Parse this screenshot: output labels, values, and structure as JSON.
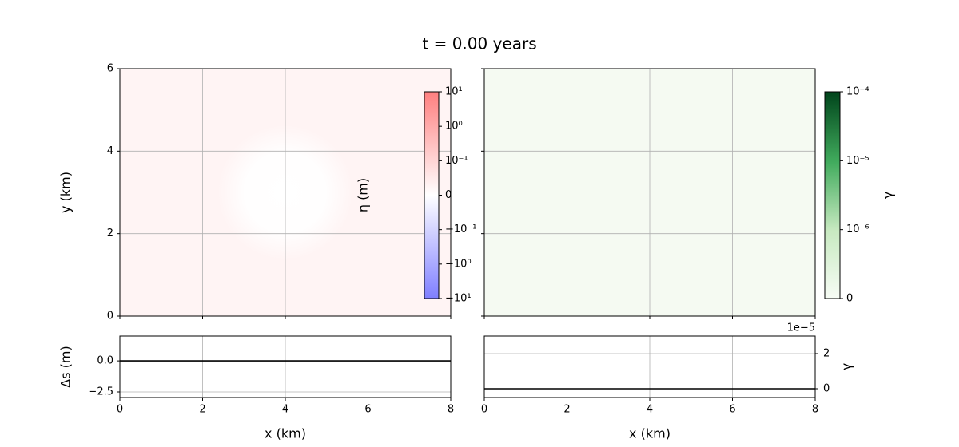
{
  "figure": {
    "title": "t = 0.00 years"
  },
  "chart_data": [
    {
      "type": "heatmap",
      "colormap": "bwr",
      "xlim": [
        0,
        8
      ],
      "ylim": [
        0,
        6
      ],
      "xticks": [
        0,
        2,
        4,
        6,
        8
      ],
      "yticks": [
        0,
        2,
        4,
        6
      ],
      "ylabel": "y (km)",
      "grid": true,
      "show_xticklabels": false,
      "show_yticklabels": true,
      "yaxis_side": "left",
      "colorbar": {
        "label": "η (m)",
        "scale": "symlog",
        "linthresh": 0.1,
        "lim": [
          -10,
          10
        ],
        "placement": "inset",
        "ticks": [
          {
            "value": 10,
            "label": "10¹"
          },
          {
            "value": 1,
            "label": "10⁰"
          },
          {
            "value": 0.1,
            "label": "10⁻¹"
          },
          0,
          {
            "value": -0.1,
            "label": "−10⁻¹"
          },
          {
            "value": -1,
            "label": "−10⁰"
          },
          {
            "value": -10,
            "label": "−10¹"
          }
        ]
      }
    },
    {
      "type": "heatmap",
      "colormap": "Greens",
      "xlim": [
        0,
        8
      ],
      "ylim": [
        0,
        6
      ],
      "xticks": [
        0,
        2,
        4,
        6,
        8
      ],
      "yticks": [
        0,
        2,
        4,
        6
      ],
      "grid": true,
      "show_xticklabels": false,
      "show_yticklabels": false,
      "yaxis_side": "left",
      "colorbar": {
        "label": "γ",
        "scale": "symlog",
        "linthresh": 1e-06,
        "lim": [
          0,
          0.0001
        ],
        "placement": "outside",
        "ticks": [
          {
            "value": 0.0001,
            "label": "10⁻⁴"
          },
          {
            "value": 1e-05,
            "label": "10⁻⁵"
          },
          {
            "value": 1e-06,
            "label": "10⁻⁶"
          },
          0
        ]
      }
    },
    {
      "type": "line",
      "x": [
        0,
        2,
        4,
        6,
        8
      ],
      "values": [
        0,
        0,
        0,
        0,
        0
      ],
      "color": "#000000",
      "xlim": [
        0,
        8
      ],
      "ylim": [
        -2.95,
        2
      ],
      "xticks": [
        0,
        2,
        4,
        6,
        8
      ],
      "yticks": [
        {
          "value": 0,
          "label": "0.0"
        },
        {
          "value": -2.5,
          "label": "−2.5"
        }
      ],
      "xlabel": "x (km)",
      "ylabel": "Δs (m)",
      "grid": true,
      "show_xticklabels": true,
      "show_yticklabels": true,
      "yaxis_side": "left"
    },
    {
      "type": "line",
      "x": [
        0,
        2,
        4,
        6,
        8
      ],
      "values": [
        0,
        0,
        0,
        0,
        0
      ],
      "color": "#000000",
      "xlim": [
        0,
        8
      ],
      "ylim": [
        -0.5,
        3
      ],
      "xticks": [
        0,
        2,
        4,
        6,
        8
      ],
      "yticks": [
        0,
        2
      ],
      "xlabel": "x (km)",
      "ylabel": "γ",
      "offset_text": "1e−5",
      "grid": true,
      "show_xticklabels": true,
      "show_yticklabels": true,
      "yaxis_side": "right"
    }
  ]
}
